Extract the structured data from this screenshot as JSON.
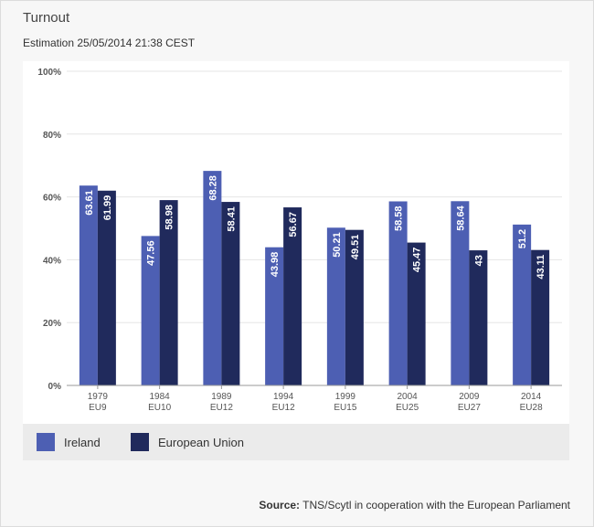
{
  "header": {
    "title": "Turnout",
    "subtitle": "Estimation 25/05/2014 21:38 CEST"
  },
  "colors": {
    "ireland": "#4d5fb3",
    "eu": "#202a5c",
    "grid": "#e6e6e6",
    "axis_text": "#555555"
  },
  "chart_data": {
    "type": "bar",
    "title": "Turnout",
    "subtitle": "Estimation 25/05/2014 21:38 CEST",
    "categories": [
      [
        "1979",
        "EU9"
      ],
      [
        "1984",
        "EU10"
      ],
      [
        "1989",
        "EU12"
      ],
      [
        "1994",
        "EU12"
      ],
      [
        "1999",
        "EU15"
      ],
      [
        "2004",
        "EU25"
      ],
      [
        "2009",
        "EU27"
      ],
      [
        "2014",
        "EU28"
      ]
    ],
    "series": [
      {
        "name": "Ireland",
        "values": [
          63.61,
          47.56,
          68.28,
          43.98,
          50.21,
          58.58,
          58.64,
          51.2
        ]
      },
      {
        "name": "European Union",
        "values": [
          61.99,
          58.98,
          58.41,
          56.67,
          49.51,
          45.47,
          43,
          43.11
        ]
      }
    ],
    "ylim": [
      0,
      100
    ],
    "yticks": [
      "0%",
      "20%",
      "40%",
      "60%",
      "80%",
      "100%"
    ],
    "grid": true,
    "legend_position": "bottom-left"
  },
  "legend": {
    "items": [
      {
        "label": "Ireland"
      },
      {
        "label": "European Union"
      }
    ]
  },
  "footer": {
    "source_label": "Source:",
    "source_text": " TNS/Scytl in cooperation with the European Parliament"
  }
}
